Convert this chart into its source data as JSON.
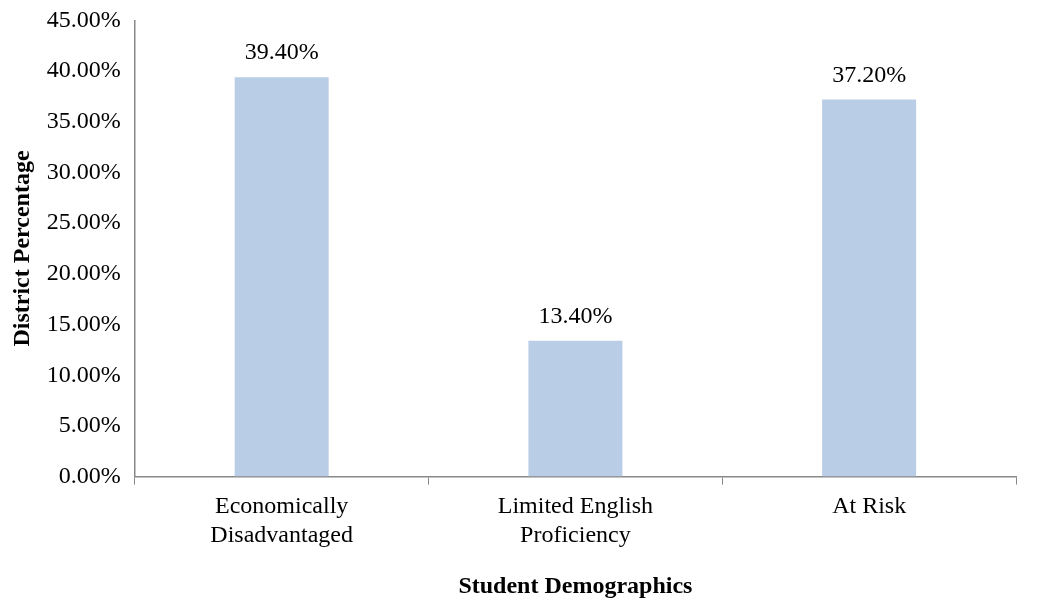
{
  "chart_data": {
    "type": "bar",
    "xlabel": "Student Demographics",
    "ylabel": "District Percentage",
    "categories": [
      "Economically Disadvantaged",
      "Limited English Proficiency",
      "At Risk"
    ],
    "values": [
      39.4,
      13.4,
      37.2
    ],
    "value_labels": [
      "39.40%",
      "13.40%",
      "37.20%"
    ],
    "color": "#b9cde6",
    "ylim": [
      0,
      45
    ],
    "yticks": [
      {
        "value": 0,
        "label": "0.00%"
      },
      {
        "value": 5,
        "label": "5.00%"
      },
      {
        "value": 10,
        "label": "10.00%"
      },
      {
        "value": 15,
        "label": "15.00%"
      },
      {
        "value": 20,
        "label": "20.00%"
      },
      {
        "value": 25,
        "label": "25.00%"
      },
      {
        "value": 30,
        "label": "30.00%"
      },
      {
        "value": 35,
        "label": "35.00%"
      },
      {
        "value": 40,
        "label": "40.00%"
      },
      {
        "value": 45,
        "label": "45.00%"
      }
    ],
    "grid": false,
    "legend": false
  }
}
